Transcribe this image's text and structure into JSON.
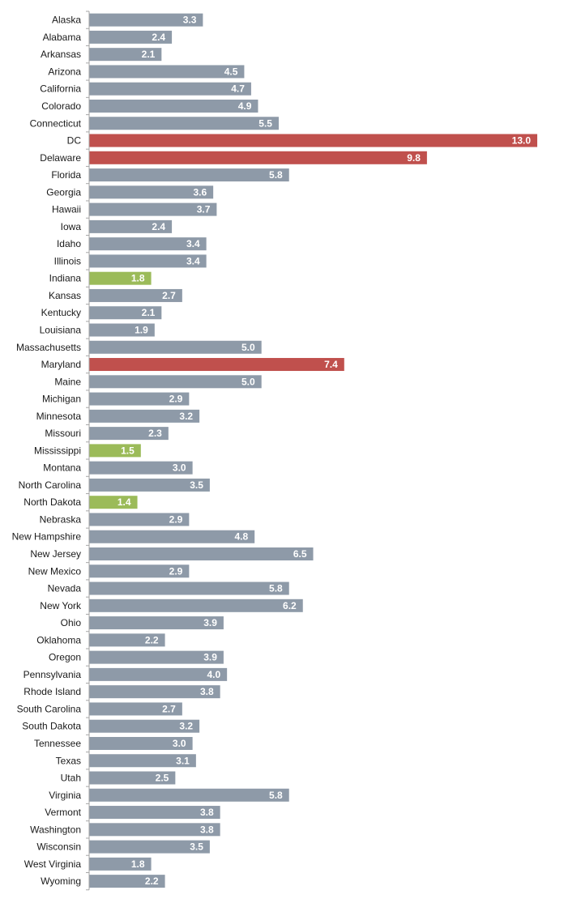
{
  "chart_data": {
    "type": "bar",
    "orientation": "horizontal",
    "title": "",
    "xlabel": "",
    "ylabel": "",
    "xlim": [
      0,
      13.0
    ],
    "grid": false,
    "legend": "none",
    "colors": {
      "default": "#8e9aa8",
      "high": "#c0504d",
      "low": "#9bbb59",
      "axis": "#a6a6a6",
      "label_text": "#1a1a1a",
      "value_text": "#ffffff"
    },
    "categories": [
      "Alaska",
      "Alabama",
      "Arkansas",
      "Arizona",
      "California",
      "Colorado",
      "Connecticut",
      "DC",
      "Delaware",
      "Florida",
      "Georgia",
      "Hawaii",
      "Iowa",
      "Idaho",
      "Illinois",
      "Indiana",
      "Kansas",
      "Kentucky",
      "Louisiana",
      "Massachusetts",
      "Maryland",
      "Maine",
      "Michigan",
      "Minnesota",
      "Missouri",
      "Mississippi",
      "Montana",
      "North Carolina",
      "North Dakota",
      "Nebraska",
      "New Hampshire",
      "New Jersey",
      "New Mexico",
      "Nevada",
      "New York",
      "Ohio",
      "Oklahoma",
      "Oregon",
      "Pennsylvania",
      "Rhode Island",
      "South Carolina",
      "South Dakota",
      "Tennessee",
      "Texas",
      "Utah",
      "Virginia",
      "Vermont",
      "Washington",
      "Wisconsin",
      "West Virginia",
      "Wyoming"
    ],
    "values": [
      3.3,
      2.4,
      2.1,
      4.5,
      4.7,
      4.9,
      5.5,
      13.0,
      9.8,
      5.8,
      3.6,
      3.7,
      2.4,
      3.4,
      3.4,
      1.8,
      2.7,
      2.1,
      1.9,
      5.0,
      7.4,
      5.0,
      2.9,
      3.2,
      2.3,
      1.5,
      3.0,
      3.5,
      1.4,
      2.9,
      4.8,
      6.5,
      2.9,
      5.8,
      6.2,
      3.9,
      2.2,
      3.9,
      4.0,
      3.8,
      2.7,
      3.2,
      3.0,
      3.1,
      2.5,
      5.8,
      3.8,
      3.8,
      3.5,
      1.8,
      2.2
    ],
    "value_labels": [
      "3.3",
      "2.4",
      "2.1",
      "4.5",
      "4.7",
      "4.9",
      "5.5",
      "13.0",
      "9.8",
      "5.8",
      "3.6",
      "3.7",
      "2.4",
      "3.4",
      "3.4",
      "1.8",
      "2.7",
      "2.1",
      "1.9",
      "5.0",
      "7.4",
      "5.0",
      "2.9",
      "3.2",
      "2.3",
      "1.5",
      "3.0",
      "3.5",
      "1.4",
      "2.9",
      "4.8",
      "6.5",
      "2.9",
      "5.8",
      "6.2",
      "3.9",
      "2.2",
      "3.9",
      "4.0",
      "3.8",
      "2.7",
      "3.2",
      "3.0",
      "3.1",
      "2.5",
      "5.8",
      "3.8",
      "3.8",
      "3.5",
      "1.8",
      "2.2"
    ],
    "highlight": {
      "high": [
        "DC",
        "Delaware",
        "Maryland"
      ],
      "low": [
        "Indiana",
        "Mississippi",
        "North Dakota"
      ]
    }
  }
}
